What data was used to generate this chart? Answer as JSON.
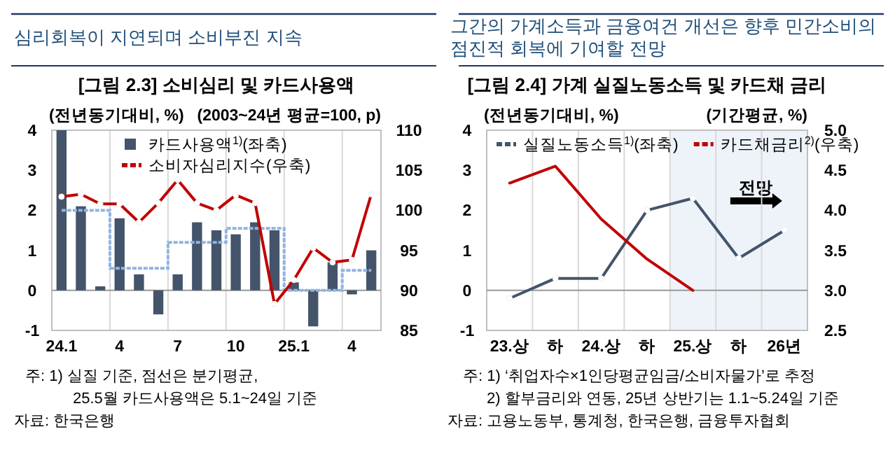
{
  "chart_data": [
    {
      "type": "bar",
      "title": "심리회복이 지연되며 소비부진 지속",
      "subtitle": "[그림 2.3] 소비심리 및 카드사용액",
      "ylabel": "(전년동기대비, %)",
      "y2label": "(2003~24년 평균=100, p)",
      "categories": [
        "24.1",
        null,
        null,
        "4",
        null,
        null,
        "7",
        null,
        null,
        "10",
        null,
        null,
        "25.1",
        null,
        null,
        "4",
        null
      ],
      "series": [
        {
          "name": "카드사용액$^{1)}$(좌축)",
          "type": "bar",
          "color": "#44546a",
          "values": [
            4.0,
            2.1,
            0.1,
            1.8,
            0.4,
            -0.6,
            0.4,
            1.7,
            1.5,
            1.4,
            1.7,
            1.5,
            0.2,
            -0.9,
            0.7,
            -0.1,
            1.0
          ]
        },
        {
          "type": "step",
          "color": "#8eb4e3",
          "line_style": "dotted",
          "marker": "none",
          "values": [
            2.0,
            2.0,
            2.0,
            0.55,
            0.55,
            0.55,
            1.2,
            1.2,
            1.2,
            1.55,
            1.55,
            1.55,
            0.0,
            0.0,
            0.0,
            0.5,
            0.5
          ]
        },
        {
          "name": "소비자심리지수(우축)",
          "type": "line",
          "axis": "y2",
          "color": "#c00000",
          "marker": "circle",
          "line_style": "solid",
          "values": [
            101.7,
            102.0,
            100.8,
            100.8,
            98.5,
            100.9,
            103.8,
            100.9,
            100.0,
            101.9,
            100.9,
            88.3,
            91.3,
            95.3,
            93.5,
            93.8,
            102.0
          ]
        }
      ],
      "ylim": [
        -1,
        4
      ],
      "yticks": [
        -1,
        0,
        1,
        2,
        3,
        4
      ],
      "y2lim": [
        85,
        110
      ],
      "y2ticks": [
        85,
        90,
        95,
        100,
        105,
        110
      ],
      "grid": "x",
      "legend": "top left",
      "annotations": [
        "주: 1) 실질 기준, 점선은 분기평균,",
        "25.5월 카드사용액은 5.1~24일 기준",
        "자료: 한국은행"
      ]
    },
    {
      "type": "line",
      "title": "그간의 가계소득과 금융여건 개선은 향후 민간소비의\n점진적 회복에 기여할 전망",
      "subtitle": "[그림 2.4] 가계 실질노동소득 및 카드채 금리",
      "ylabel": "(전년동기대비, %)",
      "y2label": "(기간평균, %)",
      "categories": [
        "23.상",
        "하",
        "24.상",
        "하",
        "25.상",
        "하",
        "26년"
      ],
      "series": [
        {
          "name": "실질노동소득$^{1)}$(좌축)",
          "color": "#44546a",
          "marker": "circle",
          "line_style": "solid",
          "values": [
            -0.2,
            0.3,
            0.3,
            2.0,
            2.3,
            0.8,
            1.5
          ]
        },
        {
          "name": "카드채금리$^{2)}$(우축)",
          "axis": "y2",
          "color": "#c00000",
          "marker": "none",
          "line_style": "solid",
          "values": [
            4.34,
            4.55,
            3.89,
            3.39,
            3.0,
            null,
            null
          ]
        }
      ],
      "ylim": [
        -1,
        4
      ],
      "yticks": [
        -1,
        0,
        1,
        2,
        3,
        4
      ],
      "y2lim": [
        2.5,
        5
      ],
      "y2ticks": [
        {
          "value": 2.5,
          "label": "2.5"
        },
        {
          "value": 3,
          "label": "3.0"
        },
        {
          "value": 3.5,
          "label": "3.5"
        },
        {
          "value": 4,
          "label": "4.0"
        },
        {
          "value": 4.5,
          "label": "4.5"
        },
        {
          "value": 5,
          "label": "5.0"
        }
      ],
      "grid": "x",
      "legend": "top",
      "bands": [
        {
          "axis": "x",
          "from": "25.상",
          "to": "26년",
          "label": "전망",
          "color": "#eef3fa"
        }
      ],
      "annotations": [
        "주: 1) ‘취업자수×1인당평균임금/소비자물가’로 추정",
        "2) 할부금리와 연동, 25년 상반기는 1.1~5.24일 기준",
        "자료: 고용노동부, 통계청, 한국은행, 금융투자협회"
      ]
    }
  ]
}
